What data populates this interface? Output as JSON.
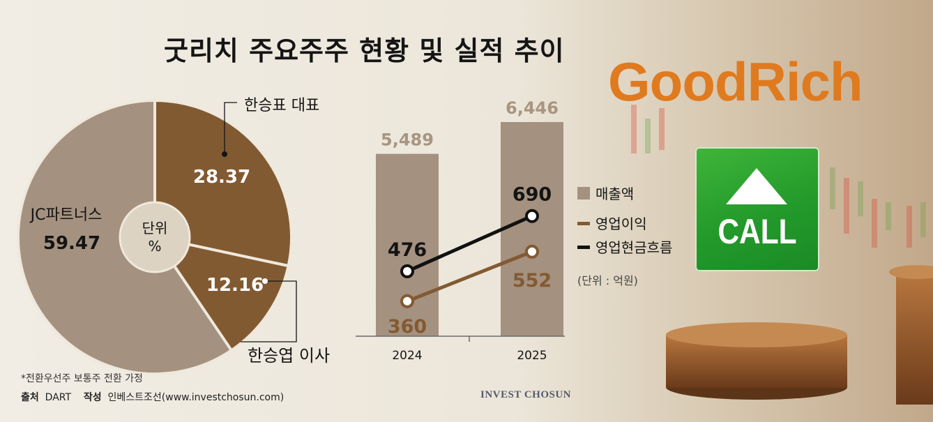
{
  "title": "굿리치 주요주주 현황 및 실적 추이",
  "logo_text": "GoodRich",
  "call_label": "CALL",
  "footnote": "*전환우선주 보통주 전환 가정",
  "source": {
    "label_source": "출처",
    "source_value": "DART",
    "label_author": "작성",
    "author_value": "인베스트조선(www.investchosun.com)"
  },
  "brand": "INVEST CHOSUN",
  "colors": {
    "revenue": "#a4917f",
    "operating_profit": "#825a32",
    "cashflow": "#111111",
    "pie_large": "#a4917f",
    "pie_dark": "#825a32",
    "logo": "#e07a1f",
    "call_green": "#2aa52f"
  },
  "chart_data": [
    {
      "type": "pie",
      "center_label": [
        "단위",
        "%"
      ],
      "slices": [
        {
          "name": "한승표 대표",
          "value": 28.37,
          "color": "#825a32"
        },
        {
          "name": "한승엽 이사",
          "value": 12.16,
          "color": "#825a32"
        },
        {
          "name": "JC파트너스",
          "value": 59.47,
          "color": "#a4917f"
        }
      ]
    },
    {
      "type": "bar",
      "categories": [
        "2024",
        "2025"
      ],
      "unit_note": "(단위 : 억원)",
      "ylim": [
        0,
        7000
      ],
      "series": [
        {
          "name": "매출액",
          "type": "bar",
          "values": [
            5489,
            6446
          ],
          "labels": [
            "5,489",
            "6,446"
          ]
        },
        {
          "name": "영업이익",
          "type": "line",
          "values": [
            360,
            552
          ],
          "labels": [
            "360",
            "552"
          ]
        },
        {
          "name": "영업현금흐름",
          "type": "line",
          "values": [
            476,
            690
          ],
          "labels": [
            "476",
            "690"
          ]
        }
      ]
    }
  ]
}
